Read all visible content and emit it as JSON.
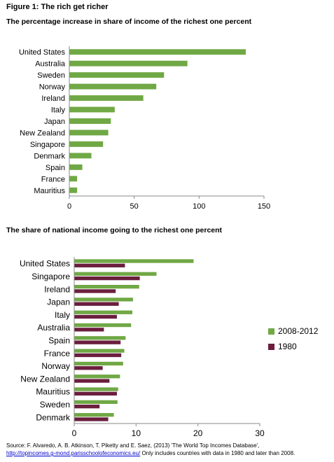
{
  "figure_title": "Figure 1: The rich get richer",
  "chart_data": [
    {
      "type": "bar",
      "orientation": "horizontal",
      "title": "The percentage increase in share of income of the richest one percent",
      "categories": [
        "United States",
        "Australia",
        "Sweden",
        "Norway",
        "Ireland",
        "Italy",
        "Japan",
        "New Zealand",
        "Singapore",
        "Denmark",
        "Spain",
        "France",
        "Mauritius"
      ],
      "series": [
        {
          "values": [
            136,
            91,
            73,
            67,
            57,
            35,
            32,
            30,
            26,
            17,
            10,
            6,
            6
          ],
          "color": "#70a845"
        }
      ],
      "xlim": [
        0,
        150
      ],
      "xticks": [
        "0",
        "50",
        "100",
        "150"
      ],
      "grid": false,
      "legend": "none"
    },
    {
      "type": "bar",
      "orientation": "horizontal",
      "title": "The share of national income going to the richest one percent",
      "categories": [
        "United States",
        "Singapore",
        "Ireland",
        "Japan",
        "Italy",
        "Australia",
        "Spain",
        "France",
        "Norway",
        "New Zealand",
        "Mauritius",
        "Sweden",
        "Denmark"
      ],
      "series": [
        {
          "name": "2008-2012",
          "values": [
            19.3,
            13.3,
            10.5,
            9.5,
            9.4,
            9.2,
            8.3,
            8.1,
            7.9,
            7.4,
            7.1,
            7.0,
            6.4
          ],
          "color": "#70a845"
        },
        {
          "name": "1980",
          "values": [
            8.2,
            10.6,
            6.7,
            7.2,
            6.9,
            4.8,
            7.5,
            7.6,
            4.6,
            5.7,
            6.9,
            4.1,
            5.5
          ],
          "color": "#6b1e3e"
        }
      ],
      "xlim": [
        0,
        30
      ],
      "xticks": [
        "0",
        "10",
        "20",
        "30"
      ],
      "grid": false,
      "legend": "right"
    }
  ],
  "source": {
    "text": "Source: F. Alvaredo, A. B. Atkinson, T. Piketty and E. Saez, (2013) 'The World Top Incomes Database',",
    "link": "http://topincomes.g-mond.parisschoolofeconomics.eu/",
    "note": "  Only includes countries with data in 1980 and later than 2008."
  }
}
